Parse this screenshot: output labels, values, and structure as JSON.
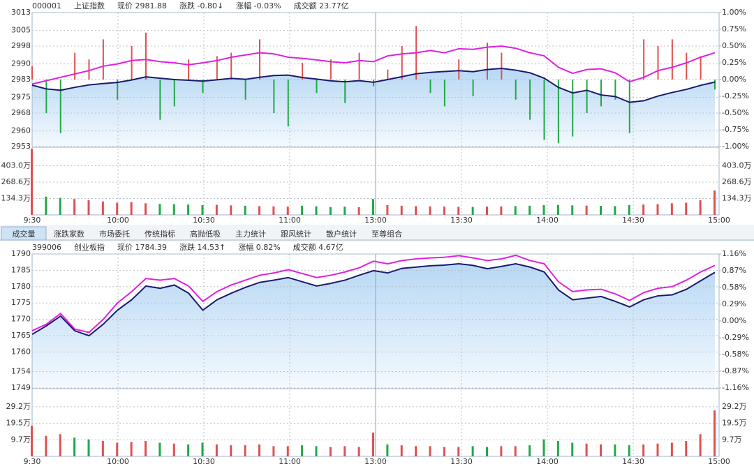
{
  "chart_data": [
    {
      "type": "line",
      "header": [
        {
          "text": "000001",
          "color": "#1a8fd0"
        },
        {
          "text": "上证指数",
          "color": "#20a8d8"
        },
        {
          "text": "现价 2981.88",
          "color": "#1a9a3a"
        },
        {
          "text": "涨跌 -0.80↓",
          "color": "#1a9a3a"
        },
        {
          "text": "涨幅 -0.03%",
          "color": "#1a9a3a"
        },
        {
          "text": "成交额 23.77亿",
          "color": "#333333"
        }
      ],
      "xticks": [
        "9:30",
        "10:00",
        "10:30",
        "11:00",
        "13:00",
        "13:30",
        "14:00",
        "14:30",
        "15:00"
      ],
      "ylim": [
        2953,
        3013
      ],
      "yticks": [
        3013,
        3005,
        2998,
        2990,
        2983,
        2975,
        2968,
        2960,
        2953
      ],
      "y2lim": [
        -1,
        1
      ],
      "y2ticks": [
        {
          "value": 1,
          "label": "1.00%"
        },
        {
          "value": 0.75,
          "label": "0.75%"
        },
        {
          "value": 0.5,
          "label": "0.50%"
        },
        {
          "value": 0.25,
          "label": "0.25%"
        },
        {
          "value": 0,
          "label": "0.00%"
        },
        {
          "value": -0.25,
          "label": "-0.25%"
        },
        {
          "value": -0.5,
          "label": "-0.50%"
        },
        {
          "value": -0.75,
          "label": "-0.75%"
        },
        {
          "value": -1,
          "label": "-1.00%"
        }
      ],
      "series": [
        {
          "color": "#1a1a6e",
          "values": [
            2980.5,
            2978.8,
            2978.2,
            2979.5,
            2980.6,
            2981.2,
            2981.7,
            2982.8,
            2984.2,
            2983.6,
            2983.0,
            2982.7,
            2982.3,
            2982.9,
            2983.5,
            2983.1,
            2984.0,
            2984.8,
            2985.0,
            2983.9,
            2983.2,
            2982.4,
            2982.0,
            2982.5,
            2981.8,
            2983.0,
            2984.3,
            2985.6,
            2986.2,
            2986.6,
            2987.0,
            2986.5,
            2987.5,
            2988.0,
            2987.2,
            2986.0,
            2983.6,
            2979.5,
            2977.0,
            2978.2,
            2976.1,
            2975.4,
            2972.8,
            2973.5,
            2975.6,
            2977.2,
            2978.6,
            2980.4,
            2981.88
          ]
        },
        {
          "color": "#e020e0",
          "values": [
            2981.0,
            2982.5,
            2984.0,
            2985.5,
            2987.0,
            2989.0,
            2990.0,
            2991.5,
            2992.0,
            2991.0,
            2990.5,
            2989.6,
            2990.5,
            2991.5,
            2993.0,
            2994.0,
            2995.0,
            2994.5,
            2993.0,
            2992.5,
            2991.8,
            2991.0,
            2990.5,
            2991.5,
            2991.0,
            2993.6,
            2994.5,
            2995.0,
            2996.0,
            2995.0,
            2996.8,
            2996.5,
            2997.5,
            2998.0,
            2997.0,
            2995.0,
            2993.6,
            2988.5,
            2985.8,
            2987.5,
            2987.8,
            2986.0,
            2982.0,
            2984.0,
            2987.0,
            2988.5,
            2990.5,
            2993.0,
            2995.0
          ]
        }
      ],
      "breadth": {
        "axis": "y2",
        "up_color": "#e05050",
        "down_color": "#20a848",
        "values": [
          0.2,
          -0.5,
          -0.8,
          0.4,
          0.3,
          0.6,
          -0.3,
          0.5,
          0.7,
          -0.6,
          -0.4,
          0.3,
          -0.2,
          0.35,
          0.4,
          -0.3,
          0.6,
          -0.5,
          -0.7,
          0.25,
          -0.2,
          0.3,
          -0.35,
          0.4,
          -0.1,
          0.15,
          0.5,
          0.8,
          -0.2,
          -0.4,
          0.3,
          -0.25,
          0.55,
          0.4,
          -0.3,
          -0.6,
          -0.9,
          -0.95,
          -0.85,
          -0.5,
          -0.4,
          -0.3,
          -0.8,
          0.6,
          0.5,
          0.6,
          0.4,
          0.35,
          -0.15
        ]
      },
      "volume": {
        "up_color": "#e05050",
        "down_color": "#20a848",
        "ylim": [
          0,
          548
        ],
        "yticks": [
          {
            "value": 403.0,
            "label": "403.0万"
          },
          {
            "value": 268.6,
            "label": "268.6万"
          },
          {
            "value": 134.3,
            "label": "134.3万"
          }
        ],
        "values": [
          540,
          150,
          140,
          130,
          120,
          110,
          100,
          105,
          95,
          90,
          88,
          85,
          80,
          82,
          78,
          75,
          72,
          70,
          68,
          75,
          70,
          65,
          68,
          64,
          130,
          80,
          75,
          72,
          70,
          68,
          66,
          65,
          68,
          70,
          72,
          75,
          80,
          82,
          78,
          76,
          74,
          72,
          80,
          85,
          88,
          95,
          100,
          120,
          200
        ]
      }
    },
    {
      "type": "line",
      "header": [
        {
          "text": "399006",
          "color": "#1a8fd0"
        },
        {
          "text": "创业板指",
          "color": "#333333"
        },
        {
          "text": "现价 1784.39",
          "color": "#e03030"
        },
        {
          "text": "涨跌 14.53↑",
          "color": "#e03030"
        },
        {
          "text": "涨幅 0.82%",
          "color": "#e03030"
        },
        {
          "text": "成交额 4.67亿",
          "color": "#333333"
        }
      ],
      "xticks": [
        "9:30",
        "10:00",
        "10:30",
        "11:00",
        "13:00",
        "13:30",
        "14:00",
        "14:30",
        "15:00"
      ],
      "ylim": [
        1749,
        1790
      ],
      "yticks": [
        1790,
        1785,
        1780,
        1775,
        1770,
        1765,
        1760,
        1754,
        1749
      ],
      "y2lim": [
        -1.16,
        1.16
      ],
      "y2ticks": [
        {
          "value": 1.16,
          "label": "1.16%"
        },
        {
          "value": 0.87,
          "label": "0.87%"
        },
        {
          "value": 0.58,
          "label": "0.58%"
        },
        {
          "value": 0.29,
          "label": "0.29%"
        },
        {
          "value": 0,
          "label": "0.00%"
        },
        {
          "value": -0.29,
          "label": "-0.29%"
        },
        {
          "value": -0.58,
          "label": "-0.58%"
        },
        {
          "value": -0.87,
          "label": "-0.87%"
        },
        {
          "value": -1.16,
          "label": "-1.16%"
        }
      ],
      "series": [
        {
          "color": "#1a1a6e",
          "values": [
            1765.4,
            1768.0,
            1771.0,
            1766.5,
            1765.0,
            1768.5,
            1772.8,
            1776.0,
            1780.2,
            1779.5,
            1780.5,
            1778.0,
            1772.8,
            1776.0,
            1778.0,
            1779.8,
            1781.3,
            1782.0,
            1782.8,
            1781.5,
            1780.2,
            1781.0,
            1782.0,
            1783.5,
            1784.9,
            1784.2,
            1785.6,
            1786.0,
            1786.4,
            1786.6,
            1787.0,
            1786.5,
            1785.5,
            1786.2,
            1787.0,
            1786.0,
            1784.5,
            1779.0,
            1776.0,
            1776.5,
            1777.0,
            1775.5,
            1773.8,
            1776.0,
            1777.2,
            1777.5,
            1779.2,
            1781.8,
            1784.39
          ]
        },
        {
          "color": "#e020e0",
          "values": [
            1766.5,
            1768.5,
            1771.8,
            1767.0,
            1766.0,
            1770.0,
            1775.0,
            1778.5,
            1782.5,
            1782.0,
            1782.5,
            1780.2,
            1775.5,
            1778.5,
            1780.5,
            1782.0,
            1783.5,
            1784.2,
            1785.2,
            1784.0,
            1782.8,
            1783.5,
            1784.5,
            1785.8,
            1787.8,
            1787.0,
            1788.0,
            1788.5,
            1788.8,
            1789.0,
            1789.5,
            1788.8,
            1788.0,
            1788.5,
            1789.6,
            1788.0,
            1787.0,
            1781.5,
            1778.5,
            1779.0,
            1779.2,
            1777.8,
            1775.8,
            1778.2,
            1779.5,
            1780.0,
            1782.0,
            1784.5,
            1786.5
          ]
        }
      ],
      "volume": {
        "up_color": "#e05050",
        "down_color": "#20a848",
        "ylim": [
          0,
          39.4
        ],
        "yticks": [
          {
            "value": 29.2,
            "label": "29.2万"
          },
          {
            "value": 19.5,
            "label": "19.5万"
          },
          {
            "value": 9.7,
            "label": "9.7万"
          }
        ],
        "values": [
          18,
          12,
          13,
          11,
          10,
          9,
          8,
          8.5,
          9,
          8,
          7.5,
          7,
          8,
          7,
          6.5,
          6.5,
          7,
          6,
          6,
          6.5,
          6,
          5.5,
          6,
          5.5,
          14,
          7,
          6.5,
          6,
          6,
          5.5,
          5.5,
          6,
          5.5,
          6,
          6,
          6.5,
          10,
          9,
          8,
          7.5,
          7,
          7,
          6.5,
          7,
          7.5,
          8,
          9,
          13,
          27
        ]
      }
    }
  ],
  "tabs": [
    "成交量",
    "涨跌家数",
    "市场委托",
    "传统指标",
    "高抛低吸",
    "主力统计",
    "跟风统计",
    "散户统计",
    "至尊组合"
  ]
}
